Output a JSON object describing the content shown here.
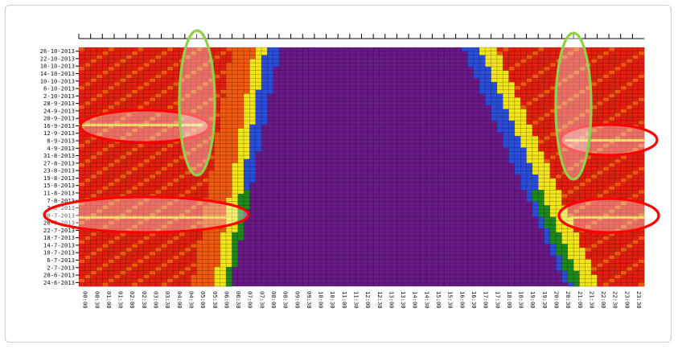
{
  "chart_data": {
    "type": "heatmap",
    "title": "",
    "xlabel": "",
    "ylabel": "",
    "x_ticks": [
      "00:00",
      "00:30",
      "01:00",
      "01:30",
      "02:00",
      "02:30",
      "03:00",
      "03:30",
      "04:00",
      "04:30",
      "05:00",
      "05:30",
      "06:00",
      "06:30",
      "07:00",
      "07:30",
      "08:00",
      "08:30",
      "09:00",
      "09:30",
      "10:00",
      "10:30",
      "11:00",
      "11:30",
      "12:00",
      "12:30",
      "13:00",
      "13:30",
      "14:00",
      "14:30",
      "15:00",
      "15:30",
      "16:00",
      "16:30",
      "17:00",
      "17:30",
      "18:00",
      "18:30",
      "19:00",
      "19:30",
      "20:00",
      "20:30",
      "21:00",
      "21:30",
      "22:00",
      "22:30",
      "23:00",
      "23:30"
    ],
    "y_ticks": [
      "26-10-2013",
      "22-10-2013",
      "18-10-2013",
      "14-10-2013",
      "10-10-2013",
      "6-10-2013",
      "2-10-2013",
      "28-9-2013",
      "24-9-2013",
      "20-9-2013",
      "16-9-2013",
      "12-9-2013",
      "8-9-2013",
      "4-9-2013",
      "31-8-2013",
      "27-8-2013",
      "23-8-2013",
      "19-8-2013",
      "15-8-2013",
      "11-8-2013",
      "7-8-2013",
      "3-8-2013",
      "30-7-2013",
      "26-7-2013",
      "22-7-2013",
      "18-7-2013",
      "14-7-2013",
      "10-7-2013",
      "6-7-2013",
      "2-7-2013",
      "28-6-2013",
      "24-6-2013"
    ],
    "color_levels": [
      "#e32010",
      "#f05a10",
      "#f2e61a",
      "#1e8a1e",
      "#2a4ed8",
      "#6a1a88"
    ],
    "grid": true,
    "annotations": [
      {
        "shape": "ellipse",
        "color": "#ff0000",
        "label": "16-9-2013 morning band"
      },
      {
        "shape": "ellipse",
        "color": "#ff0000",
        "label": "30-7-2013 morning band"
      },
      {
        "shape": "ellipse",
        "color": "#ff0000",
        "label": "12-9-2013 evening band"
      },
      {
        "shape": "ellipse",
        "color": "#ff0000",
        "label": "30-7-2013 evening band"
      },
      {
        "shape": "ellipse",
        "color": "#8fd24a",
        "label": "05:00 column"
      },
      {
        "shape": "ellipse",
        "color": "#8fd24a",
        "label": "21:00 column"
      }
    ]
  }
}
